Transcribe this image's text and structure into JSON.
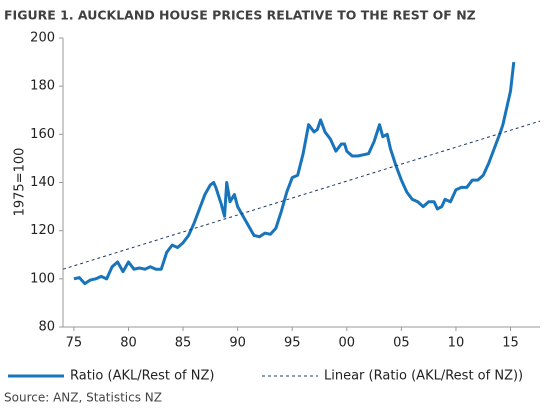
{
  "chart_data": {
    "type": "line",
    "title": "FIGURE 1. AUCKLAND HOUSE PRICES RELATIVE TO THE REST OF NZ",
    "y_label": "1975=100",
    "source": "Source: ANZ, Statistics NZ",
    "xlim": [
      1974,
      2017.7
    ],
    "ylim": [
      80,
      200
    ],
    "yticks": [
      80,
      100,
      120,
      140,
      160,
      180,
      200
    ],
    "xticks": [
      {
        "value": 1975,
        "label": "75"
      },
      {
        "value": 1980,
        "label": "80"
      },
      {
        "value": 1985,
        "label": "85"
      },
      {
        "value": 1990,
        "label": "90"
      },
      {
        "value": 1995,
        "label": "95"
      },
      {
        "value": 2000,
        "label": "00"
      },
      {
        "value": 2005,
        "label": "05"
      },
      {
        "value": 2010,
        "label": "10"
      },
      {
        "value": 2015,
        "label": "15"
      }
    ],
    "grid": false,
    "series": [
      {
        "name": "Ratio (AKL/Rest of NZ)",
        "color": "#1874bb",
        "dash": false,
        "x": [
          1975,
          1975.5,
          1976,
          1976.5,
          1977,
          1977.5,
          1978,
          1978.5,
          1979,
          1979.5,
          1980,
          1980.5,
          1981,
          1981.5,
          1982,
          1982.5,
          1983,
          1983.5,
          1984,
          1984.5,
          1985,
          1985.5,
          1986,
          1986.5,
          1987,
          1987.5,
          1987.8,
          1988,
          1988.5,
          1988.8,
          1989,
          1989.3,
          1989.7,
          1990,
          1990.5,
          1991,
          1991.5,
          1992,
          1992.5,
          1993,
          1993.5,
          1994,
          1994.5,
          1995,
          1995.5,
          1996,
          1996.5,
          1997,
          1997.3,
          1997.6,
          1998,
          1998.5,
          1999,
          1999.5,
          1999.8,
          2000,
          2000.5,
          2001,
          2001.5,
          2002,
          2002.5,
          2003,
          2003.3,
          2003.7,
          2004,
          2004.5,
          2005,
          2005.5,
          2006,
          2006.5,
          2007,
          2007.5,
          2008,
          2008.3,
          2008.7,
          2009,
          2009.5,
          2010,
          2010.5,
          2011,
          2011.5,
          2012,
          2012.5,
          2013,
          2013.5,
          2014,
          2014.3,
          2014.6,
          2015,
          2015.3
        ],
        "values": [
          100,
          100.5,
          98,
          99.5,
          100,
          101,
          100,
          105,
          107,
          103,
          107,
          104,
          104.5,
          104,
          105,
          104,
          104,
          111,
          114,
          113,
          115,
          118,
          123,
          129,
          135,
          139,
          140,
          138,
          131,
          126,
          140,
          132,
          135,
          130,
          126,
          122,
          118,
          117.5,
          119,
          118.5,
          121,
          128,
          136,
          142,
          143,
          152,
          164,
          161,
          162,
          166,
          161,
          158,
          153,
          156,
          156,
          153,
          151,
          151,
          151.5,
          152,
          157,
          164,
          159,
          160,
          154,
          147,
          141,
          136,
          133,
          132,
          130,
          132,
          132,
          129,
          130,
          133,
          132,
          137,
          138,
          138,
          141,
          141,
          143,
          148,
          154,
          160,
          164,
          170,
          178,
          190
        ]
      },
      {
        "name": "Linear (Ratio (AKL/Rest of NZ))",
        "color": "#1f3864",
        "dash": true,
        "x": [
          1974,
          2017.7
        ],
        "values": [
          104,
          165.5
        ]
      }
    ]
  }
}
